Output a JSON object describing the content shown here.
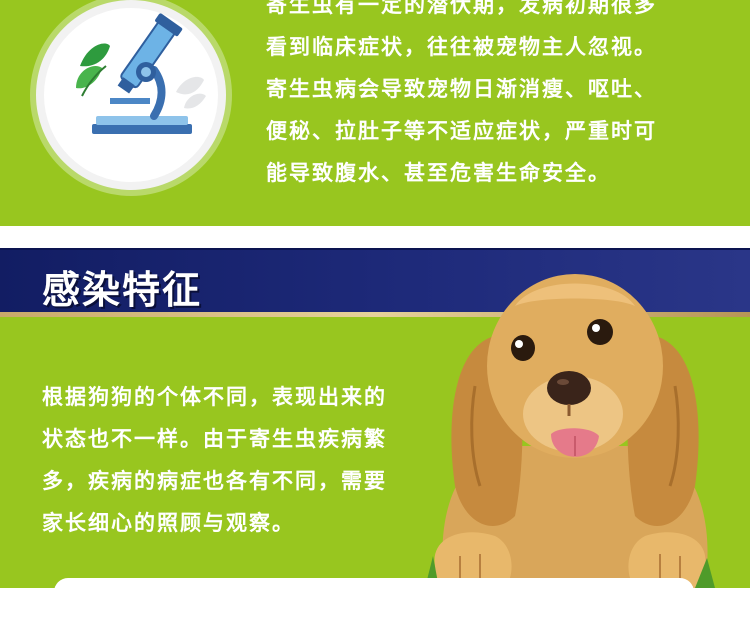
{
  "intro": {
    "lines": [
      "寄生虫有一定的潜伏期，发病初期很多",
      "看到临床症状，往往被宠物主人忽视。",
      "寄生虫病会导致宠物日渐消瘦、呕吐、",
      "便秘、拉肚子等不适应症状，严重时可",
      "能导致腹水、甚至危害生命安全。"
    ]
  },
  "section": {
    "title": "感染特征",
    "lines": [
      "根据狗狗的个体不同，表现出来的",
      "状态也不一样。由于寄生虫疾病繁",
      "多，疾病的病症也各有不同，需要",
      "家长细心的照顾与观察。"
    ]
  },
  "colors": {
    "panel_green": "#98c61f",
    "header_navy": "#1e2a7a",
    "accent_gold": "#d6bd80",
    "text_white": "#ffffff"
  },
  "icons": [
    "microscope-icon",
    "leaf-icon",
    "dog-illustration"
  ]
}
